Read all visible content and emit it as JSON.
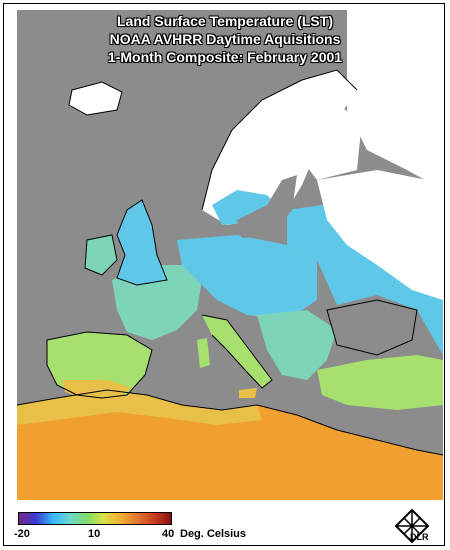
{
  "title": {
    "line1": "Land Surface Temperature (LST)",
    "line2": "NOAA AVHRR Daytime Aquisitions",
    "line3": "1-Month Composite: February 2001"
  },
  "legend": {
    "min_label": "-20",
    "mid_label": "10",
    "max_label": "40",
    "unit_label": "Deg. Celsius",
    "colors": [
      "#7a2a8a",
      "#3a3ad0",
      "#38b6ff",
      "#6cd9d0",
      "#7dde6a",
      "#d8e04a",
      "#f0b030",
      "#e07830",
      "#c84020",
      "#8a1010"
    ]
  },
  "map_colors": {
    "sea": "#8c8c8c",
    "snow_cloud": "#ffffff",
    "cold": "#5fc8e8",
    "mild": "#7ed4b8",
    "warm": "#a8e070",
    "hot": "#e8c048",
    "desert": "#f0a030",
    "coast": "#000000"
  },
  "logo": {
    "text": "DLR"
  }
}
